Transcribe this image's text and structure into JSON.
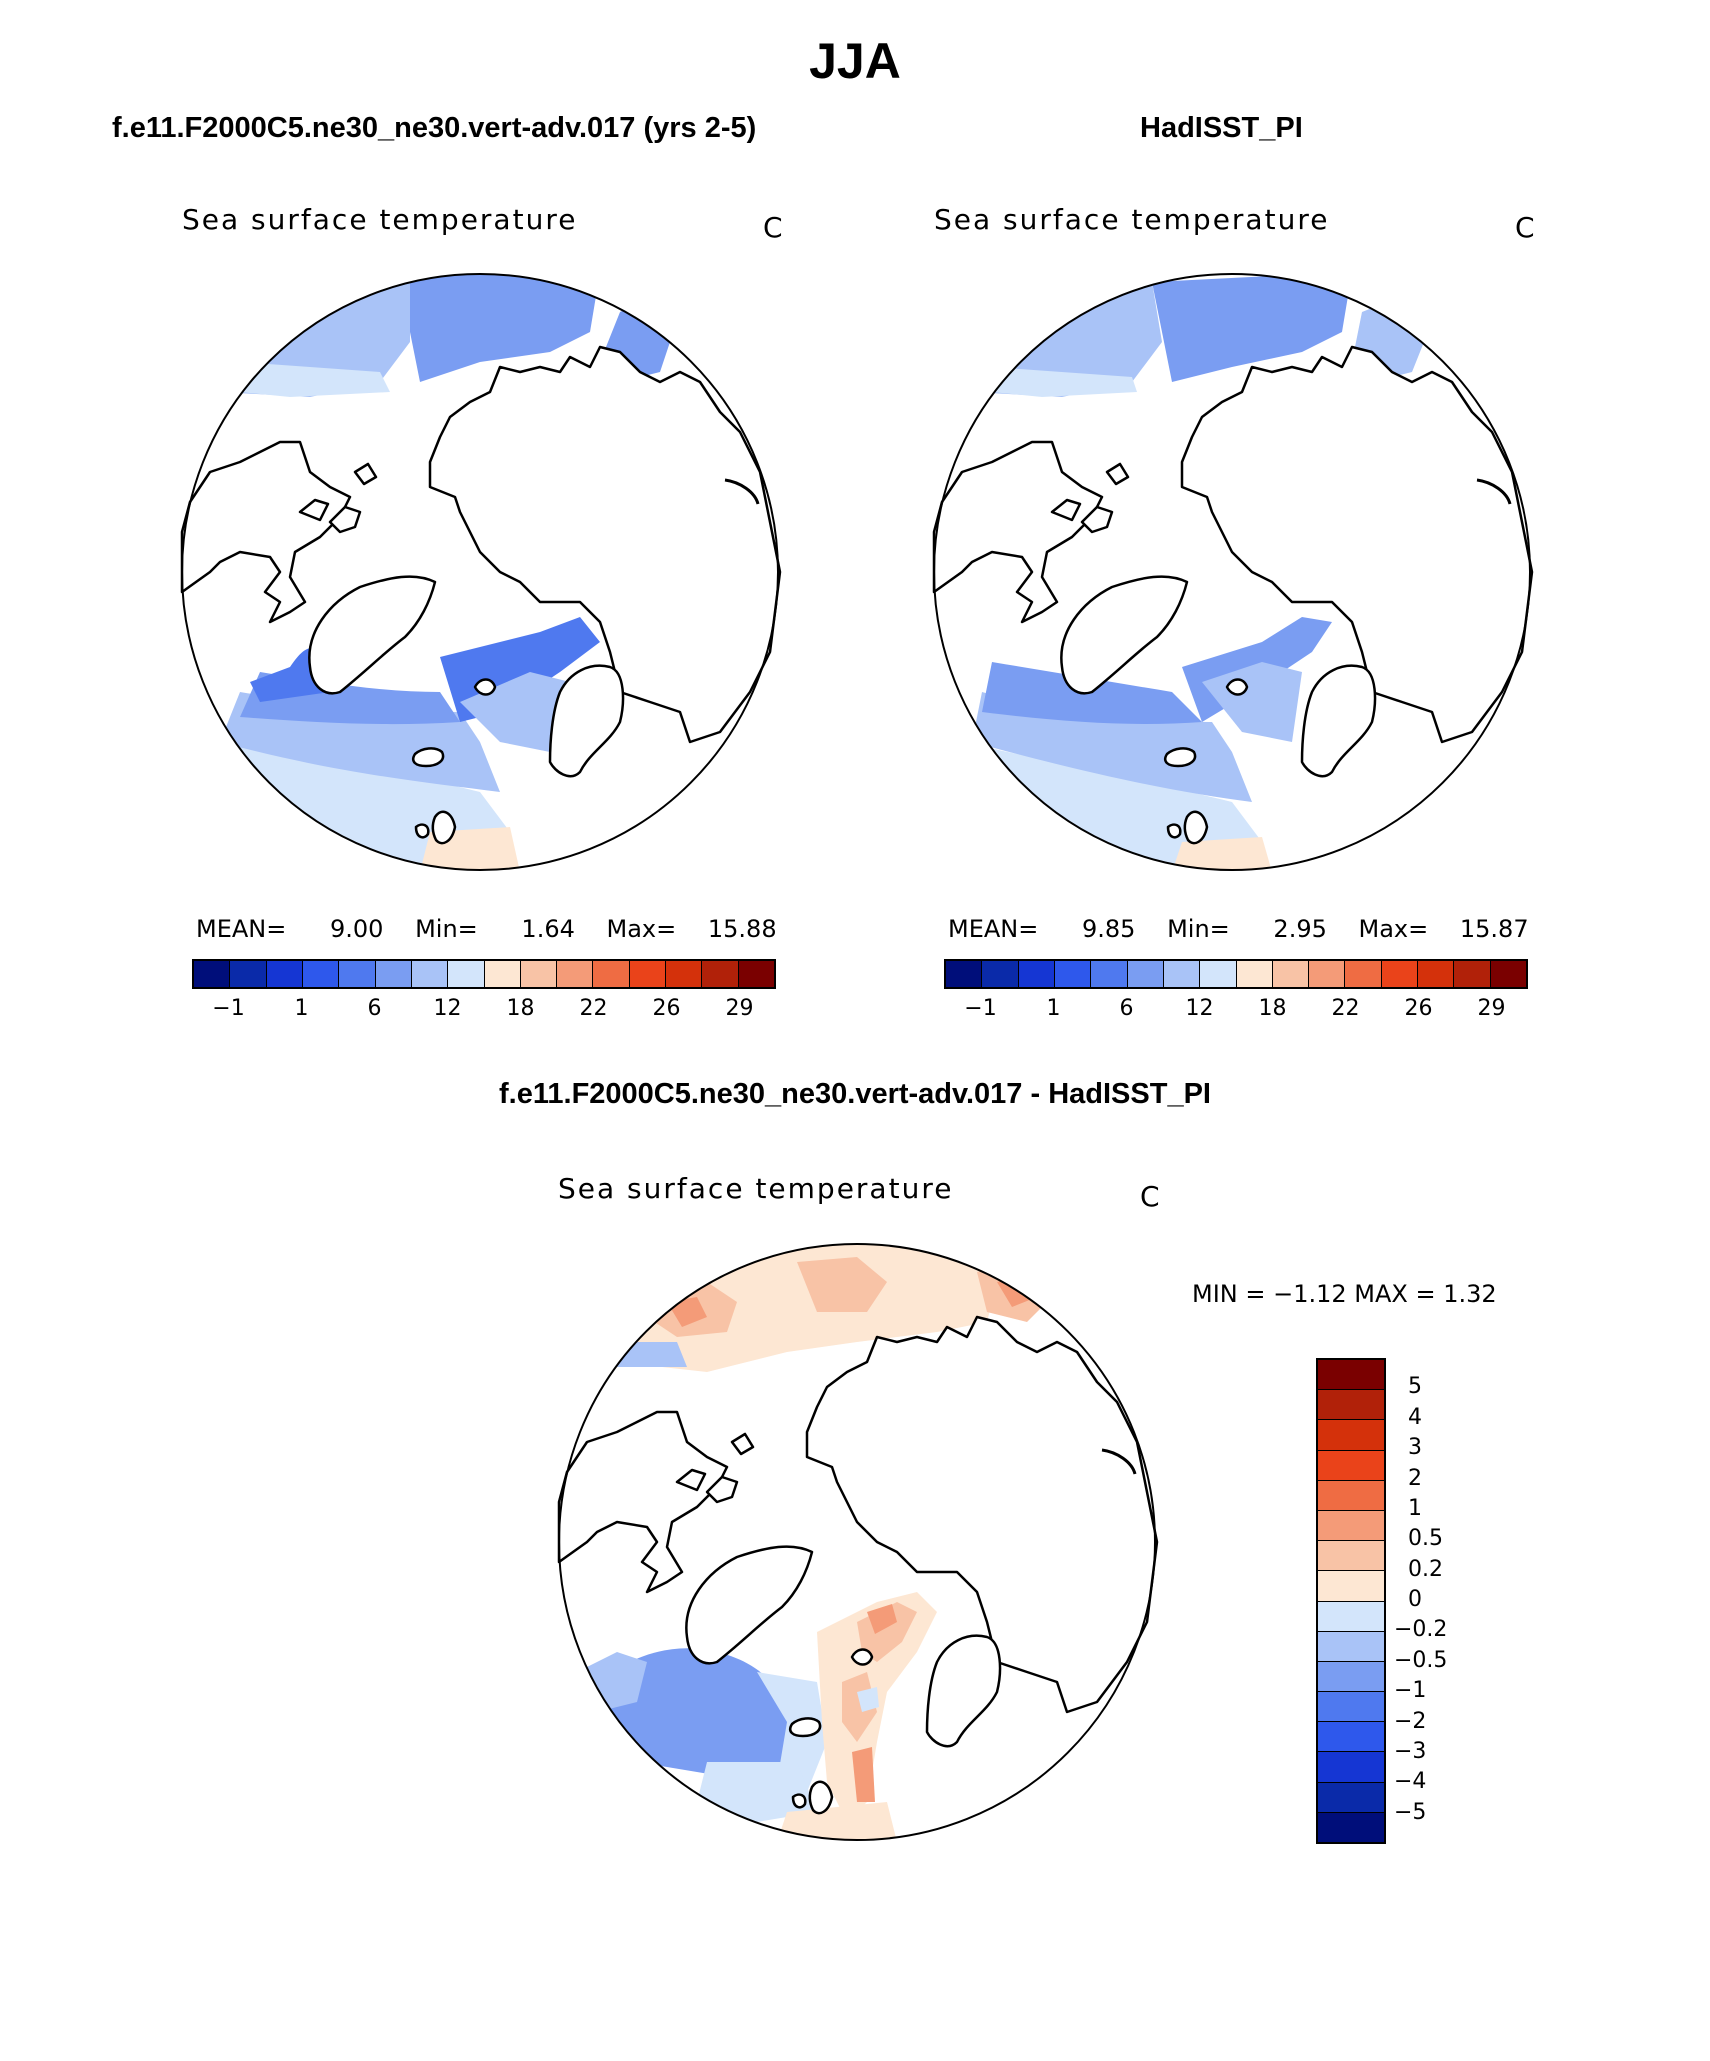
{
  "figure": {
    "season": "JJA",
    "model_title": "f.e11.F2000C5.ne30_ne30.vert-adv.017 (yrs 2-5)",
    "obs_title": "HadISST_PI",
    "diff_title": "f.e11.F2000C5.ne30_ne30.vert-adv.017 - HadISST_PI"
  },
  "panels": {
    "model": {
      "variable": "Sea surface temperature",
      "unit": "C",
      "mean_label": "MEAN=",
      "mean": "9.00",
      "min_label": "Min=",
      "min": "1.64",
      "max_label": "Max=",
      "max": "15.88"
    },
    "obs": {
      "variable": "Sea surface temperature",
      "unit": "C",
      "mean_label": "MEAN=",
      "mean": "9.85",
      "min_label": "Min=",
      "min": "2.95",
      "max_label": "Max=",
      "max": "15.87"
    },
    "diff": {
      "variable": "Sea surface temperature",
      "unit": "C",
      "minmax_text": "MIN =   −1.12  MAX =    1.32"
    }
  },
  "colorbar_abs": {
    "colors": [
      "#000e7a",
      "#0a2aa9",
      "#1536d3",
      "#2e58ec",
      "#4f79ef",
      "#7a9df2",
      "#a9c3f7",
      "#d3e5fb",
      "#fde7d3",
      "#f8c3a6",
      "#f49b78",
      "#ef6c43",
      "#ea431a",
      "#d4310b",
      "#b12109",
      "#7a0000"
    ],
    "ticks": [
      "−1",
      "1",
      "6",
      "12",
      "18",
      "22",
      "26",
      "29"
    ]
  },
  "colorbar_diff": {
    "colors": [
      "#7a0000",
      "#b12109",
      "#d4310b",
      "#ea431a",
      "#ef6c43",
      "#f49b78",
      "#f8c3a6",
      "#fde7d3",
      "#d3e5fb",
      "#a9c3f7",
      "#7a9df2",
      "#4f79ef",
      "#2e58ec",
      "#1536d3",
      "#0a2aa9",
      "#000e7a"
    ],
    "ticks": [
      "5",
      "4",
      "3",
      "2",
      "1",
      "0.5",
      "0.2",
      "0",
      "−0.2",
      "−0.5",
      "−1",
      "−2",
      "−3",
      "−4",
      "−5"
    ]
  },
  "colors": {
    "land": "#ffffff",
    "coast": "#000000",
    "pale_blue": "#d3e5fb",
    "light_blue": "#a9c3f7",
    "mid_blue": "#7a9df2",
    "blue": "#4f79ef",
    "warm_pale": "#fde7d3",
    "warm_light": "#f8c3a6",
    "warm_mid": "#f49b78"
  }
}
